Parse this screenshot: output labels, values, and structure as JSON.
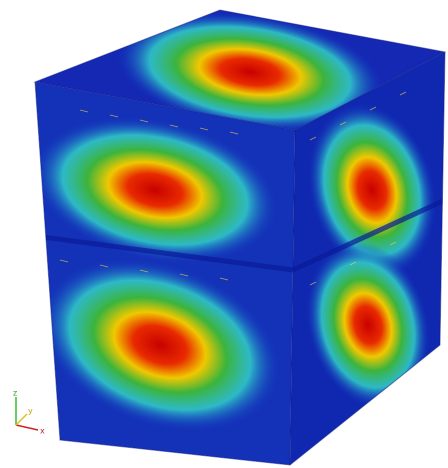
{
  "axes_triad": {
    "labels": [
      "x",
      "y",
      "z"
    ]
  }
}
